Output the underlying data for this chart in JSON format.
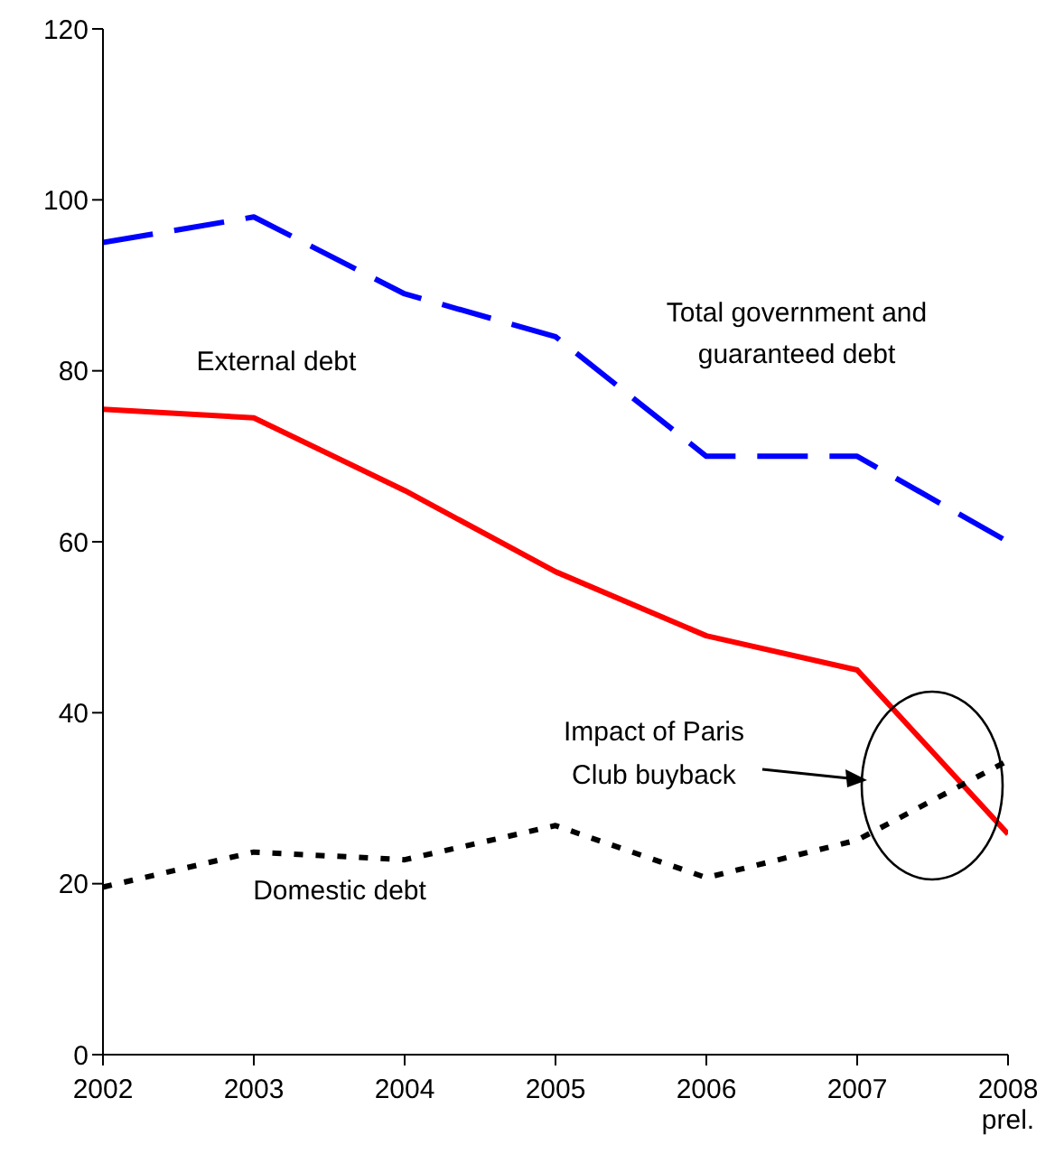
{
  "chart_data": {
    "type": "line",
    "categories": [
      "2002",
      "2003",
      "2004",
      "2005",
      "2006",
      "2007",
      "2008\nprel."
    ],
    "ylim": [
      0,
      120
    ],
    "yticks": [
      0,
      20,
      40,
      60,
      80,
      100,
      120
    ],
    "marker": "none",
    "series": [
      {
        "name": "Total government and guaranteed debt",
        "color": "#0000ff",
        "line_style": "dashed",
        "values": [
          95,
          98,
          89,
          84,
          70,
          70,
          60
        ]
      },
      {
        "name": "External debt",
        "color": "#ff0000",
        "line_style": "solid",
        "values": [
          75.5,
          74.5,
          66,
          56.5,
          49,
          45,
          25.8
        ]
      },
      {
        "name": "Domestic debt",
        "color": "#000000",
        "line_style": "dotted",
        "values": [
          19.6,
          23.7,
          22.8,
          26.8,
          20.7,
          25.1,
          34.4
        ]
      }
    ],
    "annotations": [
      "Impact of Paris Club buyback"
    ]
  }
}
